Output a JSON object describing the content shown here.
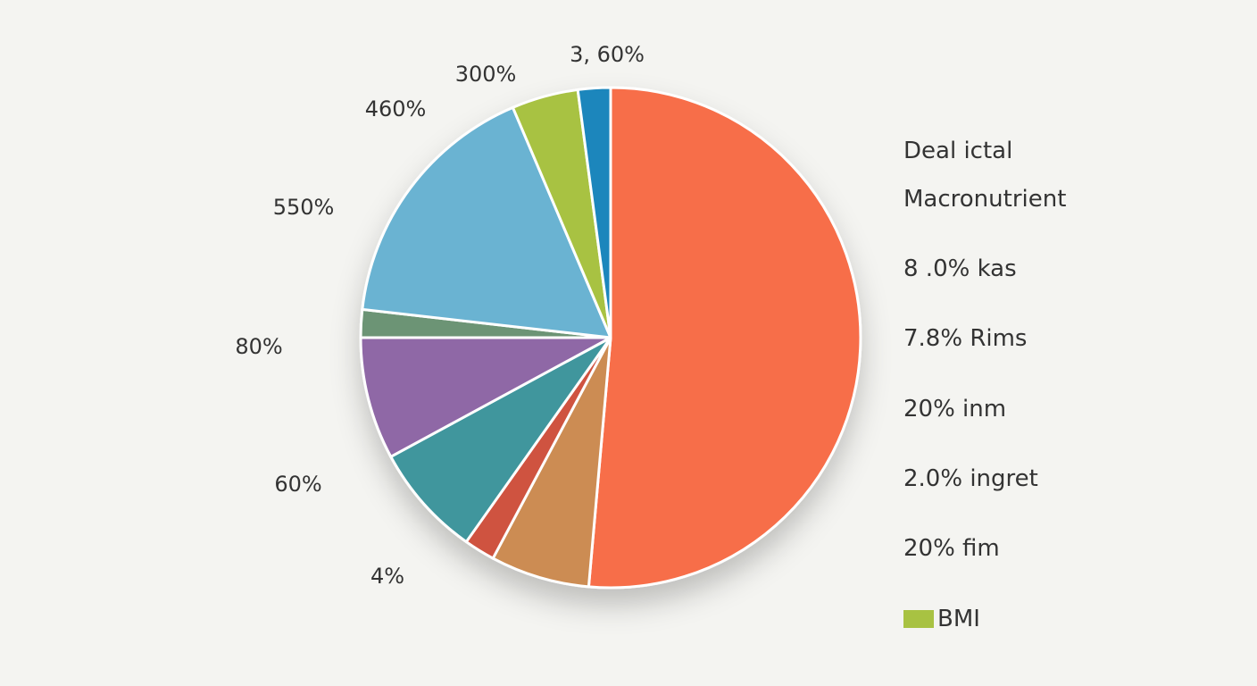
{
  "chart_data": {
    "type": "pie",
    "start_angle_deg": 0,
    "direction": "clockwise",
    "slices": [
      {
        "value": 51.4,
        "color": "#f76e48"
      },
      {
        "value": 6.4,
        "color": "#cc8c52"
      },
      {
        "value": 2.0,
        "color": "#cf5340"
      },
      {
        "value": 7.3,
        "color": "#3f969d"
      },
      {
        "value": 7.9,
        "color": "#8f68a6"
      },
      {
        "value": 1.8,
        "color": "#6c9474"
      },
      {
        "value": 16.8,
        "color": "#6bb3d2"
      },
      {
        "value": 4.3,
        "color": "#a8c242"
      },
      {
        "value": 2.1,
        "color": "#1b86bc"
      }
    ],
    "outer_labels": [
      {
        "text": "3, 60%"
      },
      {
        "text": "300%"
      },
      {
        "text": "460%"
      },
      {
        "text": "550%"
      },
      {
        "text": "80%"
      },
      {
        "text": "60%"
      },
      {
        "text": "4%"
      }
    ],
    "legend": {
      "lines": [
        "Deal ictal",
        "Macronutrient",
        "8 .0% kas",
        "7.8% Rims",
        "20% inm",
        "2.0% ingret",
        "20% fim"
      ],
      "swatch_entry": {
        "label": "BMI",
        "color": "#a8c242"
      }
    }
  }
}
